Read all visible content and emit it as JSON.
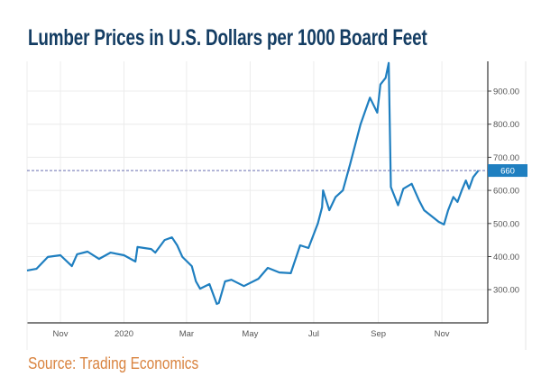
{
  "chart_data": {
    "type": "line",
    "title": "Lumber Prices in U.S. Dollars per 1000 Board Feet",
    "source": "Source: Trading Economics",
    "xlabel": "",
    "ylabel": "",
    "ylim": [
      200,
      990
    ],
    "xlim": [
      "2019-10-01",
      "2020-12-15"
    ],
    "grid": true,
    "y_axis_position": "right",
    "y_ticks": [
      300,
      400,
      500,
      600,
      700,
      800,
      900
    ],
    "y_tick_labels": [
      "300.00",
      "400.00",
      "500.00",
      "600.00",
      "700.00",
      "800.00",
      "900.00"
    ],
    "x_ticks": [
      "2019-11-01",
      "2020-01-01",
      "2020-03-01",
      "2020-05-01",
      "2020-07-01",
      "2020-09-01",
      "2020-11-01"
    ],
    "x_tick_labels": [
      "Nov",
      "2020",
      "Mar",
      "May",
      "Jul",
      "Sep",
      "Nov"
    ],
    "current_value": 660,
    "current_value_label": "660",
    "line_color": "#1f7fc0",
    "series": [
      {
        "x": [
          "2019-09-30",
          "2019-10-09",
          "2019-10-20",
          "2019-11-01",
          "2019-11-12",
          "2019-11-17",
          "2019-11-27",
          "2019-12-08",
          "2019-12-19",
          "2020-01-01",
          "2020-01-12",
          "2020-01-14",
          "2020-01-27",
          "2020-01-31",
          "2020-02-09",
          "2020-02-16",
          "2020-02-21",
          "2020-02-26",
          "2020-03-06",
          "2020-03-10",
          "2020-03-14",
          "2020-03-23",
          "2020-03-30",
          "2020-04-01",
          "2020-04-07",
          "2020-04-13",
          "2020-04-25",
          "2020-05-09",
          "2020-05-18",
          "2020-05-29",
          "2020-06-09",
          "2020-06-18",
          "2020-06-26",
          "2020-07-05",
          "2020-07-09",
          "2020-07-10",
          "2020-07-16",
          "2020-07-22",
          "2020-07-29",
          "2020-08-05",
          "2020-08-15",
          "2020-08-24",
          "2020-08-31",
          "2020-09-03",
          "2020-09-08",
          "2020-09-11",
          "2020-09-13",
          "2020-09-20",
          "2020-09-25",
          "2020-10-03",
          "2020-10-10",
          "2020-10-15",
          "2020-10-23",
          "2020-10-29",
          "2020-11-03",
          "2020-11-07",
          "2020-11-12",
          "2020-11-16",
          "2020-11-20",
          "2020-11-24",
          "2020-11-27",
          "2020-12-01",
          "2020-12-06"
        ],
        "y": [
          358,
          363,
          399,
          404,
          371,
          407,
          415,
          393,
          412,
          404,
          385,
          429,
          423,
          412,
          450,
          458,
          434,
          399,
          371,
          325,
          303,
          317,
          257,
          260,
          325,
          330,
          311,
          333,
          366,
          352,
          350,
          434,
          426,
          500,
          549,
          600,
          540,
          580,
          600,
          680,
          800,
          880,
          835,
          920,
          940,
          985,
          610,
          555,
          605,
          620,
          570,
          540,
          520,
          505,
          497,
          540,
          580,
          565,
          600,
          630,
          605,
          640,
          660
        ]
      }
    ]
  }
}
